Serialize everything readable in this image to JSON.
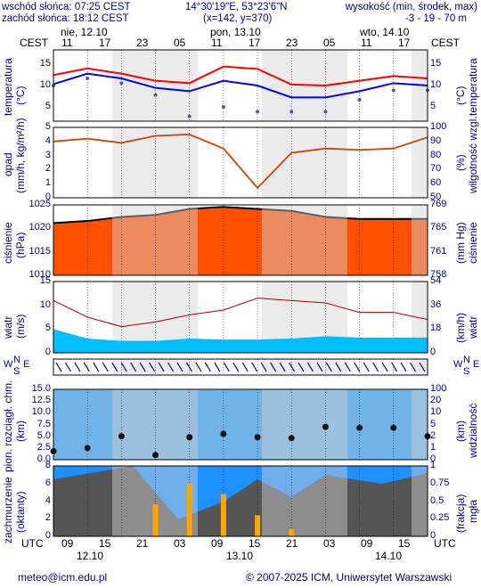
{
  "header": {
    "sunrise": "wschód słońca: 07:25 CEST",
    "sunset": "zachód słońca: 18:12 CEST",
    "coords": "14°30'19\"E, 53°23'6\"N",
    "grid": "(x=142, y=370)",
    "elev_title": "wysokość (min, środek, max)",
    "elev_values": "-3 - 19 - 70 m"
  },
  "time_axis": {
    "tz_top": "CEST",
    "tz_bottom": "UTC",
    "day_labels_top": [
      "nie, 12.10",
      "pon, 13.10",
      "wto, 14.10"
    ],
    "hours_top": [
      "11",
      "17",
      "23",
      "05",
      "11",
      "17",
      "23",
      "05",
      "11",
      "17"
    ],
    "hours_bottom": [
      "09",
      "15",
      "21",
      "03",
      "09",
      "15",
      "21",
      "03",
      "09",
      "15"
    ],
    "dates_bottom": [
      "12.10",
      "13.10",
      "14.10"
    ]
  },
  "panels": {
    "temperature": {
      "label_left": "temperatura",
      "unit_left": "(°C)",
      "label_right": "temperatura",
      "unit_right": "(°C)",
      "ticks": [
        "15",
        "10",
        "5"
      ]
    },
    "precip": {
      "label_left": "opad",
      "unit_left": "(mm/h, kg/m²/h)",
      "label_right": "wilgotność wzgl.",
      "unit_right": "(%)",
      "ticks_left": [
        "5",
        "4",
        "3",
        "2",
        "1",
        "0"
      ],
      "ticks_right": [
        "100",
        "90",
        "80",
        "70",
        "60",
        "50"
      ]
    },
    "pressure": {
      "label_left": "ciśnienie",
      "unit_left": "(hPa)",
      "label_right": "ciśnienie",
      "unit_right": "(mm Hg)",
      "ticks_left": [
        "1025",
        "1020",
        "1015",
        "1010"
      ],
      "ticks_right": [
        "769",
        "765",
        "761",
        "758"
      ]
    },
    "wind": {
      "label_left": "wiatr",
      "unit_left": "(m/s)",
      "label_right": "wiatr",
      "unit_right": "(km/h)",
      "ticks_left": [
        "15",
        "10",
        "5",
        "0"
      ],
      "ticks_right": [
        "54",
        "36",
        "18",
        "0"
      ]
    },
    "winddir": {
      "compass_left": [
        "W",
        "N",
        "E",
        "S"
      ],
      "compass_right": [
        "W",
        "N",
        "E",
        "S"
      ]
    },
    "visibility": {
      "label_left": "pion. rozciągł. chm.",
      "unit_left": "(km)",
      "label_right": "widzialność",
      "unit_right": "(km)",
      "ticks_left": [
        "15.0",
        "12.5",
        "10.0",
        "7.5",
        "5.0",
        "2.5",
        "0.0"
      ],
      "ticks_right": [
        "100",
        "20",
        "10",
        "5",
        "2",
        "1",
        "0"
      ]
    },
    "clouds": {
      "label_left": "zachmurzenie",
      "unit_left": "(oktanty)",
      "label_right": "mgła",
      "unit_right": "(frakcja)",
      "ticks_left": [
        "8",
        "6",
        "4",
        "2",
        "0"
      ],
      "ticks_right": [
        "1",
        "0.75",
        "0.5",
        "0.25",
        "0"
      ]
    }
  },
  "footer": {
    "email": "meteo@icm.edu.pl",
    "copyright": "© 2007-2025 ICM, Uniwersytet Warszawski"
  },
  "colors": {
    "night_band": "#d3d3d3",
    "temp_max": "#ff0000",
    "temp_mean": "#0000ff",
    "humidity": "#cc4400",
    "pressure_fill": "#ff5000",
    "wind_fill": "#00bfff",
    "fog_bars": "#ffa500"
  },
  "chart_data": {
    "type": "line",
    "x_hours_utc": [
      0,
      6,
      12,
      18,
      24,
      30,
      36,
      42,
      48,
      54,
      60,
      66
    ],
    "temperature": {
      "max": [
        12.2,
        13.6,
        12.5,
        11.0,
        10.5,
        14.0,
        13.5,
        10.2,
        10.0,
        11.0,
        12.0,
        11.5
      ],
      "mean": [
        10.3,
        12.5,
        11.5,
        9.5,
        8.8,
        11.0,
        10.0,
        7.5,
        7.5,
        8.8,
        10.5,
        10.0
      ],
      "dew_point": [
        10.0,
        11.5,
        10.5,
        8.0,
        3.5,
        5.5,
        4.5,
        4.5,
        4.5,
        7.0,
        9.0,
        9.0
      ],
      "ylim": [
        2.5,
        17.5
      ]
    },
    "humidity_pct": [
      90,
      92,
      89,
      94,
      95,
      85,
      57,
      82,
      85,
      84,
      85,
      93
    ],
    "pressure_hpa": [
      1023.0,
      1023.5,
      1024.5,
      1025.0,
      1026.5,
      1027.0,
      1026.5,
      1026.0,
      1024.5,
      1024.0,
      1024.0,
      1024.0
    ],
    "wind_ms": [
      5.0,
      3.0,
      2.5,
      2.5,
      3.0,
      2.8,
      2.8,
      3.0,
      3.5,
      3.2,
      3.2,
      3.2
    ],
    "wind_gust_ms": [
      11.0,
      7.5,
      5.5,
      6.5,
      8.0,
      9.0,
      11.5,
      11.0,
      10.5,
      8.5,
      8.5,
      7.0
    ],
    "cloud_base_km": [
      1.8,
      2.5,
      5.0,
      1.0,
      4.8,
      5.5,
      4.8,
      4.6,
      7.0,
      6.8,
      6.8,
      5.0
    ],
    "fog_fraction": [
      0,
      0,
      0,
      0.45,
      0.75,
      0.6,
      0.3,
      0.1,
      0,
      0,
      0,
      0
    ]
  }
}
